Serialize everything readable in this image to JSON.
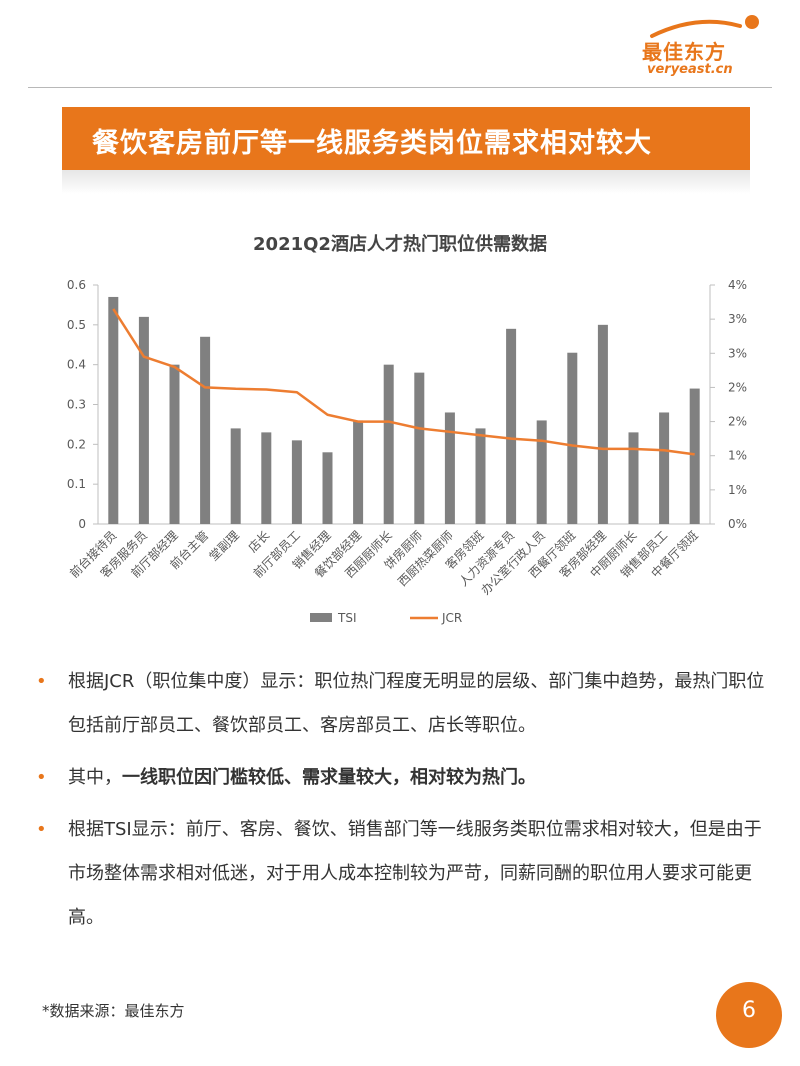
{
  "header": {
    "logo_text": "最佳东方",
    "logo_url": "veryeast.cn",
    "accent_color": "#E8761B"
  },
  "banner": {
    "title": "餐饮客房前厅等一线服务类岗位需求相对较大"
  },
  "chart_data": {
    "type": "bar",
    "title": "2021Q2酒店人才热门职位供需数据",
    "categories": [
      "前台接待员",
      "客房服务员",
      "前厅部经理",
      "前台主管",
      "堂副理",
      "店长",
      "前厅部员工",
      "销售经理",
      "餐饮部经理",
      "西厨厨师长",
      "饼房厨师",
      "西厨热菜厨师",
      "客房领班",
      "人力资源专员",
      "办公室行政人员",
      "西餐厅领班",
      "客房部经理",
      "中厨厨师长",
      "销售部员工",
      "中餐厅领班"
    ],
    "series": [
      {
        "name": "TSI",
        "type": "bar",
        "axis": "left",
        "color": "#808080",
        "values": [
          0.57,
          0.52,
          0.4,
          0.47,
          0.24,
          0.23,
          0.21,
          0.18,
          0.26,
          0.4,
          0.38,
          0.28,
          0.24,
          0.49,
          0.26,
          0.43,
          0.5,
          0.23,
          0.28,
          0.34
        ]
      },
      {
        "name": "JCR",
        "type": "line",
        "axis": "right",
        "color": "#ED7D31",
        "values": [
          3.15,
          2.45,
          2.3,
          2.0,
          1.98,
          1.97,
          1.93,
          1.6,
          1.5,
          1.5,
          1.4,
          1.35,
          1.3,
          1.25,
          1.22,
          1.15,
          1.1,
          1.1,
          1.08,
          1.02
        ]
      }
    ],
    "y_left": {
      "min": 0,
      "max": 0.6,
      "ticks": [
        "0",
        "0.1",
        "0.2",
        "0.3",
        "0.4",
        "0.5",
        "0.6"
      ]
    },
    "y_right": {
      "min": 0,
      "max": 3.5,
      "ticks": [
        "0%",
        "1%",
        "1%",
        "2%",
        "2%",
        "3%",
        "3%",
        "4%"
      ]
    },
    "legend": {
      "position": "bottom",
      "items": [
        "TSI",
        "JCR"
      ]
    },
    "grid": false
  },
  "bullets": [
    {
      "text": "根据JCR（职位集中度）显示：职位热门程度无明显的层级、部门集中趋势，最热门职位包括前厅部员工、餐饮部员工、客房部员工、店长等职位。"
    },
    {
      "prefix": "其中，",
      "bold": "一线职位因门槛较低、需求量较大，相对较为热门。"
    },
    {
      "text": "根据TSI显示：前厅、客房、餐饮、销售部门等一线服务类职位需求相对较大，但是由于市场整体需求相对低迷，对于用人成本控制较为严苛，同薪同酬的职位用人要求可能更高。"
    }
  ],
  "bullet_marker": "•",
  "footer": {
    "source": "*数据来源：最佳东方",
    "page": "6"
  }
}
